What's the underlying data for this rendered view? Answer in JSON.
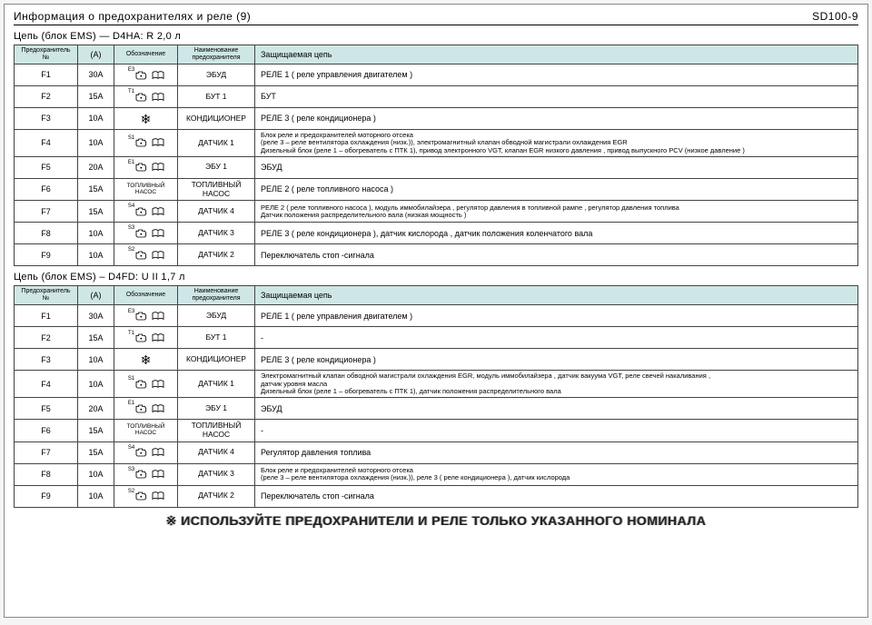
{
  "header": {
    "title_left": "Информация о предохранителях и реле (9)",
    "title_right": "SD100-9"
  },
  "columns": {
    "num": "Предохранитель №",
    "amp": "(A)",
    "sym": "Обозначение",
    "name": "Наименование предохранителя",
    "desc": "Защищаемая цепь"
  },
  "sections": [
    {
      "caption": "Цепь (блок EMS) — D4HA: R 2,0 л",
      "rows": [
        {
          "num": "F1",
          "amp": "30A",
          "sym": "engine-book",
          "symlabel": "E3",
          "name": "ЭБУД",
          "desc": "РЕЛЕ 1 ( реле управления двигателем )"
        },
        {
          "num": "F2",
          "amp": "15A",
          "sym": "engine-book",
          "symlabel": "T1",
          "name": "БУТ 1",
          "desc": "БУТ"
        },
        {
          "num": "F3",
          "amp": "10A",
          "sym": "snow",
          "symlabel": "",
          "name": "КОНДИЦИОНЕР",
          "desc": "РЕЛЕ 3 ( реле кондиционера )"
        },
        {
          "num": "F4",
          "amp": "10A",
          "sym": "engine-book",
          "symlabel": "S1",
          "name": "ДАТЧИК 1",
          "desc": "Блок реле и предохранителей моторного отсека\n(реле 3 – реле вентилятора охлаждения (низк.)), электромагнитный клапан обводной магистрали охлаждения EGR\nДизельный блок (реле 1 – обогреватель с ПТК 1), привод электронного VGT, клапан EGR низкого давления , привод выпускного PCV (низкое давление )",
          "small": true
        },
        {
          "num": "F5",
          "amp": "20A",
          "sym": "engine-book",
          "symlabel": "E1",
          "name": "ЭБУ 1",
          "desc": "ЭБУД"
        },
        {
          "num": "F6",
          "amp": "15A",
          "sym": "text",
          "symlabel": "ТОПЛИВНЫЙ НАСОС",
          "name": "ТОПЛИВНЫЙ НАСОС",
          "desc": "РЕЛЕ 2 ( реле топливного насоса )"
        },
        {
          "num": "F7",
          "amp": "15A",
          "sym": "engine-book",
          "symlabel": "S4",
          "name": "ДАТЧИК 4",
          "desc": "РЕЛЕ 2 ( реле топливного насоса ), модуль иммобилайзера , регулятор давления в топливной рампе , регулятор давления топлива\nДатчик положения распределительного вала (низкая мощность )",
          "small": true
        },
        {
          "num": "F8",
          "amp": "10A",
          "sym": "engine-book",
          "symlabel": "S3",
          "name": "ДАТЧИК 3",
          "desc": "РЕЛЕ 3 ( реле кондиционера ), датчик кислорода , датчик положения коленчатого вала"
        },
        {
          "num": "F9",
          "amp": "10A",
          "sym": "engine-book",
          "symlabel": "S2",
          "name": "ДАТЧИК 2",
          "desc": "Переключатель стоп -сигнала"
        }
      ]
    },
    {
      "caption": "Цепь (блок EMS) – D4FD: U II 1,7 л",
      "rows": [
        {
          "num": "F1",
          "amp": "30A",
          "sym": "engine-book",
          "symlabel": "E3",
          "name": "ЭБУД",
          "desc": "РЕЛЕ 1 ( реле управления двигателем )"
        },
        {
          "num": "F2",
          "amp": "15A",
          "sym": "engine-book",
          "symlabel": "T1",
          "name": "БУТ 1",
          "desc": "-"
        },
        {
          "num": "F3",
          "amp": "10A",
          "sym": "snow",
          "symlabel": "",
          "name": "КОНДИЦИОНЕР",
          "desc": "РЕЛЕ 3 ( реле кондиционера )"
        },
        {
          "num": "F4",
          "amp": "10A",
          "sym": "engine-book",
          "symlabel": "S1",
          "name": "ДАТЧИК 1",
          "desc": "Электромагнитный клапан обводной магистрали охлаждения EGR, модуль иммобилайзера , датчик вакуума VGT, реле свечей накаливания ,\nдатчик уровня масла\nДизельный блок (реле 1 – обогреватель с ПТК 1), датчик положения распределительного вала",
          "small": true
        },
        {
          "num": "F5",
          "amp": "20A",
          "sym": "engine-book",
          "symlabel": "E1",
          "name": "ЭБУ 1",
          "desc": "ЭБУД"
        },
        {
          "num": "F6",
          "amp": "15A",
          "sym": "text",
          "symlabel": "ТОПЛИВНЫЙ НАСОС",
          "name": "ТОПЛИВНЫЙ НАСОС",
          "desc": "-"
        },
        {
          "num": "F7",
          "amp": "15A",
          "sym": "engine-book",
          "symlabel": "S4",
          "name": "ДАТЧИК 4",
          "desc": "Регулятор давления топлива"
        },
        {
          "num": "F8",
          "amp": "10A",
          "sym": "engine-book",
          "symlabel": "S3",
          "name": "ДАТЧИК 3",
          "desc": "Блок реле и предохранителей моторного отсека\n(реле 3 – реле вентилятора охлаждения (низк.)), реле 3 ( реле кондиционера ), датчик кислорода",
          "small": true
        },
        {
          "num": "F9",
          "amp": "10A",
          "sym": "engine-book",
          "symlabel": "S2",
          "name": "ДАТЧИК 2",
          "desc": "Переключатель стоп -сигнала"
        }
      ]
    }
  ],
  "footer": "※ ИСПОЛЬЗУЙТЕ ПРЕДОХРАНИТЕЛИ И РЕЛЕ ТОЛЬКО УКАЗАННОГО НОМИНАЛА",
  "style": {
    "header_bg": "#cfe6e6",
    "border_color": "#444444",
    "page_bg": "#ffffff",
    "body_bg": "#f5f5f5",
    "font_family": "Arial, sans-serif"
  }
}
